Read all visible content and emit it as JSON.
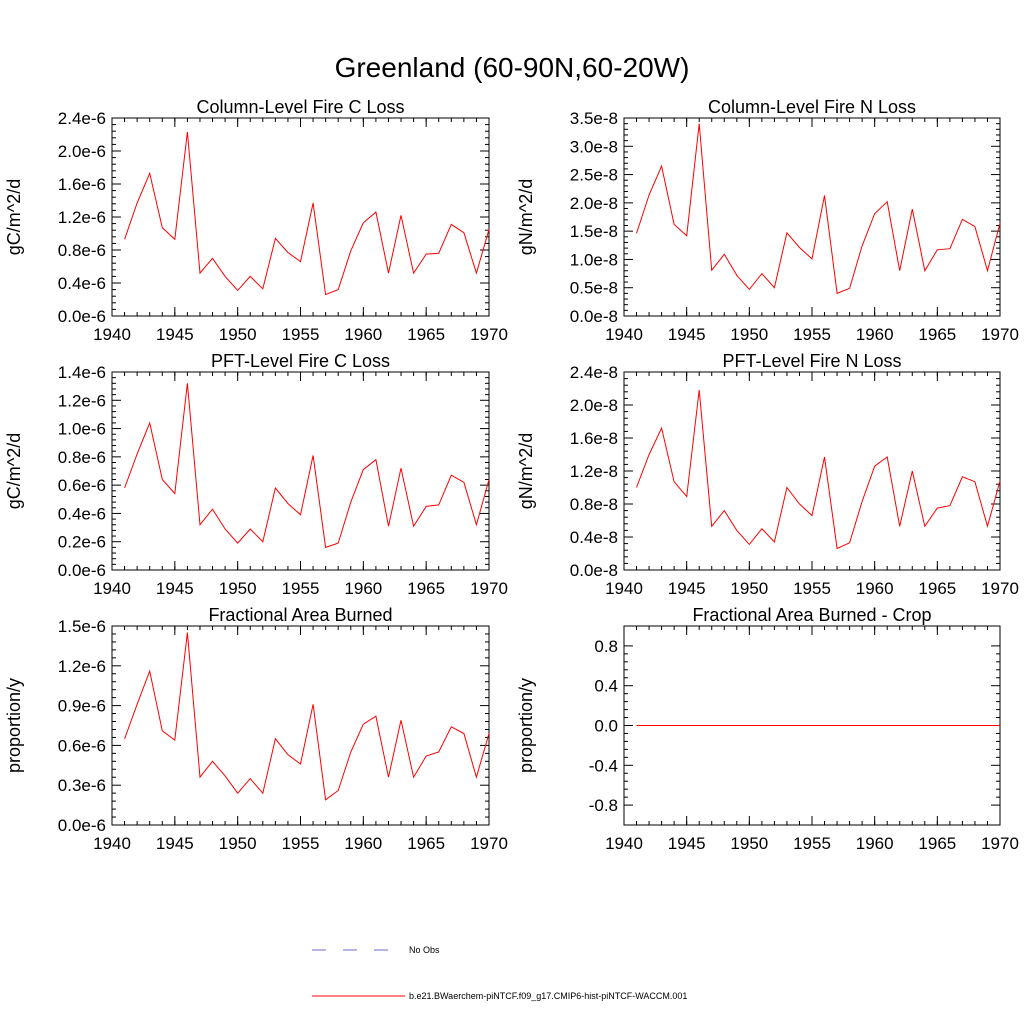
{
  "title": "Greenland (60-90N,60-20W)",
  "colors": {
    "model": "#ff0000",
    "obs": "#6b6bd6",
    "axis": "#000000"
  },
  "legend": {
    "obs_label": "No Obs",
    "model_label": "b.e21.BWaerchem-piNTCF.f09_g17.CMIP6-hist-piNTCF-WACCM.001"
  },
  "chart_data": [
    {
      "type": "line",
      "title": "Column-Level Fire C Loss",
      "ylabel": "gC/m^2/d",
      "xlim": [
        1940,
        1970
      ],
      "ylim": [
        0.0,
        2.4e-06
      ],
      "xticks": [
        1940,
        1945,
        1950,
        1955,
        1960,
        1965,
        1970
      ],
      "xtick_labels": [
        "1940",
        "1945",
        "1950",
        "1955",
        "1960",
        "1965",
        "1970"
      ],
      "yticks": [
        0.0,
        4e-07,
        8e-07,
        1.2e-06,
        1.6e-06,
        2e-06,
        2.4e-06
      ],
      "ytick_labels": [
        "0.0e-6",
        "0.4e-6",
        "0.8e-6",
        "1.2e-6",
        "1.6e-6",
        "2.0e-6",
        "2.4e-6"
      ],
      "x": [
        1941,
        1942,
        1943,
        1944,
        1945,
        1946,
        1947,
        1948,
        1949,
        1950,
        1951,
        1952,
        1953,
        1954,
        1955,
        1956,
        1957,
        1958,
        1959,
        1960,
        1961,
        1962,
        1963,
        1964,
        1965,
        1966,
        1967,
        1968,
        1969,
        1970
      ],
      "series": [
        {
          "values": [
            9.3e-07,
            1.37e-06,
            1.73e-06,
            1.07e-06,
            9.3e-07,
            2.23e-06,
            5.2e-07,
            7e-07,
            4.8e-07,
            3.1e-07,
            4.8e-07,
            3.3e-07,
            9.4e-07,
            7.7e-07,
            6.6e-07,
            1.37e-06,
            2.6e-07,
            3.2e-07,
            7.9e-07,
            1.13e-06,
            1.26e-06,
            5.2e-07,
            1.22e-06,
            5.2e-07,
            7.5e-07,
            7.6e-07,
            1.11e-06,
            1.01e-06,
            5.2e-07,
            1.05e-06
          ]
        }
      ]
    },
    {
      "type": "line",
      "title": "Column-Level Fire N Loss",
      "ylabel": "gN/m^2/d",
      "xlim": [
        1940,
        1970
      ],
      "ylim": [
        0.0,
        3.5e-08
      ],
      "xticks": [
        1940,
        1945,
        1950,
        1955,
        1960,
        1965,
        1970
      ],
      "xtick_labels": [
        "1940",
        "1945",
        "1950",
        "1955",
        "1960",
        "1965",
        "1970"
      ],
      "yticks": [
        0.0,
        5e-09,
        1e-08,
        1.5e-08,
        2e-08,
        2.5e-08,
        3e-08,
        3.5e-08
      ],
      "ytick_labels": [
        "0.0e-8",
        "0.5e-8",
        "1.0e-8",
        "1.5e-8",
        "2.0e-8",
        "2.5e-8",
        "3.0e-8",
        "3.5e-8"
      ],
      "x": [
        1941,
        1942,
        1943,
        1944,
        1945,
        1946,
        1947,
        1948,
        1949,
        1950,
        1951,
        1952,
        1953,
        1954,
        1955,
        1956,
        1957,
        1958,
        1959,
        1960,
        1961,
        1962,
        1963,
        1964,
        1965,
        1966,
        1967,
        1968,
        1969,
        1970
      ],
      "series": [
        {
          "values": [
            1.46e-08,
            2.14e-08,
            2.65e-08,
            1.62e-08,
            1.42e-08,
            3.4e-08,
            8.1e-09,
            1.09e-08,
            7.2e-09,
            4.7e-09,
            7.5e-09,
            5e-09,
            1.47e-08,
            1.21e-08,
            1.01e-08,
            2.13e-08,
            4e-09,
            4.9e-09,
            1.24e-08,
            1.81e-08,
            2.02e-08,
            8e-09,
            1.89e-08,
            8e-09,
            1.17e-08,
            1.19e-08,
            1.71e-08,
            1.58e-08,
            8e-09,
            1.64e-08
          ]
        }
      ]
    },
    {
      "type": "line",
      "title": "PFT-Level Fire C Loss",
      "ylabel": "gC/m^2/d",
      "xlim": [
        1940,
        1970
      ],
      "ylim": [
        0.0,
        1.4e-06
      ],
      "xticks": [
        1940,
        1945,
        1950,
        1955,
        1960,
        1965,
        1970
      ],
      "xtick_labels": [
        "1940",
        "1945",
        "1950",
        "1955",
        "1960",
        "1965",
        "1970"
      ],
      "yticks": [
        0.0,
        2e-07,
        4e-07,
        6e-07,
        8e-07,
        1e-06,
        1.2e-06,
        1.4e-06
      ],
      "ytick_labels": [
        "0.0e-6",
        "0.2e-6",
        "0.4e-6",
        "0.6e-6",
        "0.8e-6",
        "1.0e-6",
        "1.2e-6",
        "1.4e-6"
      ],
      "x": [
        1941,
        1942,
        1943,
        1944,
        1945,
        1946,
        1947,
        1948,
        1949,
        1950,
        1951,
        1952,
        1953,
        1954,
        1955,
        1956,
        1957,
        1958,
        1959,
        1960,
        1961,
        1962,
        1963,
        1964,
        1965,
        1966,
        1967,
        1968,
        1969,
        1970
      ],
      "series": [
        {
          "values": [
            5.8e-07,
            8.2e-07,
            1.04e-06,
            6.4e-07,
            5.4e-07,
            1.32e-06,
            3.2e-07,
            4.3e-07,
            2.9e-07,
            1.9e-07,
            2.9e-07,
            2e-07,
            5.8e-07,
            4.7e-07,
            3.9e-07,
            8.1e-07,
            1.6e-07,
            1.9e-07,
            4.8e-07,
            7.1e-07,
            7.8e-07,
            3.1e-07,
            7.2e-07,
            3.1e-07,
            4.5e-07,
            4.6e-07,
            6.7e-07,
            6.2e-07,
            3.2e-07,
            6.4e-07
          ]
        }
      ]
    },
    {
      "type": "line",
      "title": "PFT-Level Fire N Loss",
      "ylabel": "gN/m^2/d",
      "xlim": [
        1940,
        1970
      ],
      "ylim": [
        0.0,
        2.4e-08
      ],
      "xticks": [
        1940,
        1945,
        1950,
        1955,
        1960,
        1965,
        1970
      ],
      "xtick_labels": [
        "1940",
        "1945",
        "1950",
        "1955",
        "1960",
        "1965",
        "1970"
      ],
      "yticks": [
        0.0,
        4e-09,
        8e-09,
        1.2e-08,
        1.6e-08,
        2e-08,
        2.4e-08
      ],
      "ytick_labels": [
        "0.0e-8",
        "0.4e-8",
        "0.8e-8",
        "1.2e-8",
        "1.6e-8",
        "2.0e-8",
        "2.4e-8"
      ],
      "x": [
        1941,
        1942,
        1943,
        1944,
        1945,
        1946,
        1947,
        1948,
        1949,
        1950,
        1951,
        1952,
        1953,
        1954,
        1955,
        1956,
        1957,
        1958,
        1959,
        1960,
        1961,
        1962,
        1963,
        1964,
        1965,
        1966,
        1967,
        1968,
        1969,
        1970
      ],
      "series": [
        {
          "values": [
            1e-08,
            1.4e-08,
            1.72e-08,
            1.07e-08,
            8.9e-09,
            2.18e-08,
            5.3e-09,
            7.2e-09,
            4.8e-09,
            3.1e-09,
            5e-09,
            3.4e-09,
            1e-08,
            8e-09,
            6.6e-09,
            1.37e-08,
            2.6e-09,
            3.3e-09,
            8.3e-09,
            1.26e-08,
            1.37e-08,
            5.3e-09,
            1.2e-08,
            5.3e-09,
            7.5e-09,
            7.8e-09,
            1.13e-08,
            1.07e-08,
            5.3e-09,
            1.08e-08
          ]
        }
      ]
    },
    {
      "type": "line",
      "title": "Fractional Area Burned",
      "ylabel": "proportion/y",
      "xlim": [
        1940,
        1970
      ],
      "ylim": [
        0.0,
        1.5e-06
      ],
      "xticks": [
        1940,
        1945,
        1950,
        1955,
        1960,
        1965,
        1970
      ],
      "xtick_labels": [
        "1940",
        "1945",
        "1950",
        "1955",
        "1960",
        "1965",
        "1970"
      ],
      "yticks": [
        0.0,
        3e-07,
        6e-07,
        9e-07,
        1.2e-06,
        1.5e-06
      ],
      "ytick_labels": [
        "0.0e-6",
        "0.3e-6",
        "0.6e-6",
        "0.9e-6",
        "1.2e-6",
        "1.5e-6"
      ],
      "x": [
        1941,
        1942,
        1943,
        1944,
        1945,
        1946,
        1947,
        1948,
        1949,
        1950,
        1951,
        1952,
        1953,
        1954,
        1955,
        1956,
        1957,
        1958,
        1959,
        1960,
        1961,
        1962,
        1963,
        1964,
        1965,
        1966,
        1967,
        1968,
        1969,
        1970
      ],
      "series": [
        {
          "values": [
            6.5e-07,
            9.1e-07,
            1.16e-06,
            7.1e-07,
            6.4e-07,
            1.45e-06,
            3.6e-07,
            4.8e-07,
            3.7e-07,
            2.4e-07,
            3.5e-07,
            2.4e-07,
            6.5e-07,
            5.3e-07,
            4.6e-07,
            9.1e-07,
            1.9e-07,
            2.6e-07,
            5.5e-07,
            7.6e-07,
            8.2e-07,
            3.6e-07,
            7.9e-07,
            3.6e-07,
            5.2e-07,
            5.5e-07,
            7.4e-07,
            6.9e-07,
            3.6e-07,
            6.9e-07
          ]
        }
      ]
    },
    {
      "type": "line",
      "title": "Fractional Area Burned - Crop",
      "ylabel": "proportion/y",
      "xlim": [
        1940,
        1970
      ],
      "ylim": [
        -1.0,
        1.0
      ],
      "xticks": [
        1940,
        1945,
        1950,
        1955,
        1960,
        1965,
        1970
      ],
      "xtick_labels": [
        "1940",
        "1945",
        "1950",
        "1955",
        "1960",
        "1965",
        "1970"
      ],
      "yticks": [
        -0.8,
        -0.4,
        0.0,
        0.4,
        0.8
      ],
      "ytick_labels": [
        "-0.8",
        "-0.4",
        "0.0",
        "0.4",
        "0.8"
      ],
      "x": [
        1941,
        1942,
        1943,
        1944,
        1945,
        1946,
        1947,
        1948,
        1949,
        1950,
        1951,
        1952,
        1953,
        1954,
        1955,
        1956,
        1957,
        1958,
        1959,
        1960,
        1961,
        1962,
        1963,
        1964,
        1965,
        1966,
        1967,
        1968,
        1969,
        1970
      ],
      "series": [
        {
          "values": [
            0,
            0,
            0,
            0,
            0,
            0,
            0,
            0,
            0,
            0,
            0,
            0,
            0,
            0,
            0,
            0,
            0,
            0,
            0,
            0,
            0,
            0,
            0,
            0,
            0,
            0,
            0,
            0,
            0,
            0
          ]
        }
      ]
    }
  ]
}
